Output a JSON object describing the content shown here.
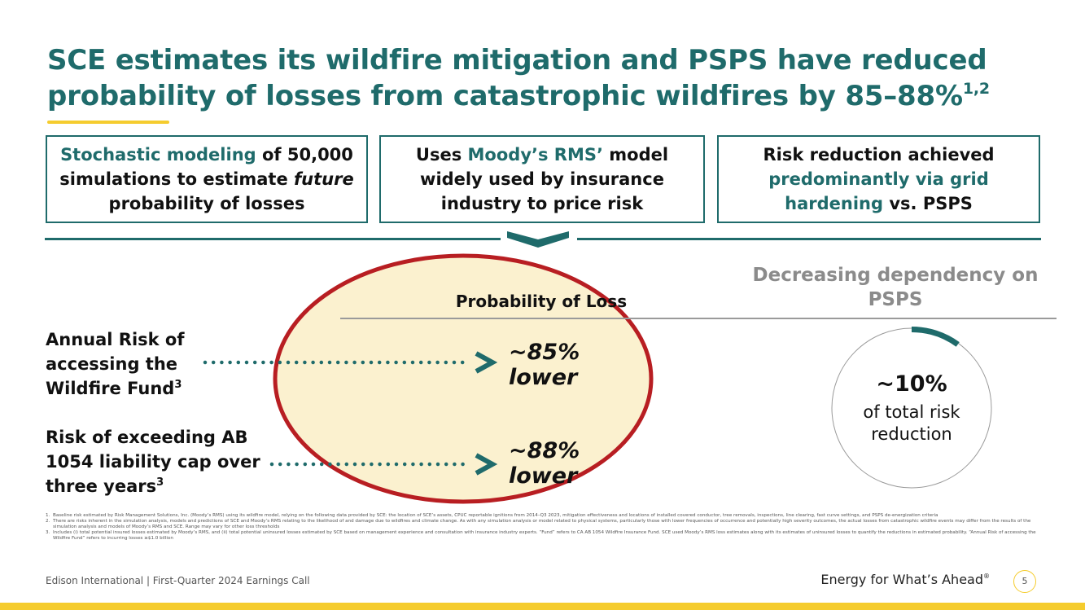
{
  "title": {
    "text": "SCE estimates its wildfire mitigation and PSPS have reduced probability of losses from catastrophic wildfires by 85–88%",
    "superscript": "1,2"
  },
  "boxes": {
    "box1": {
      "highlight": "Stochastic modeling",
      "text_a": " of 50,000 simulations to estimate ",
      "italic": "future",
      "text_b": " probability of losses"
    },
    "box2": {
      "text_a": "Uses ",
      "highlight": "Moody’s RMS’",
      "text_b": " model widely used by insurance industry to price risk"
    },
    "box3": {
      "text_a": "Risk reduction achieved ",
      "highlight": "predominantly via grid hardening",
      "text_b": " vs. PSPS"
    }
  },
  "probability_label": "Probability of Loss",
  "dependency_heading": "Decreasing dependency on PSPS",
  "rows": [
    {
      "label": "Annual Risk of accessing the Wildfire Fund",
      "superscript": "3",
      "value": "~85%",
      "value_suffix": "lower"
    },
    {
      "label": "Risk of exceeding AB 1054 liability cap over three years",
      "superscript": "3",
      "value": "~88%",
      "value_suffix": "lower"
    }
  ],
  "donut": {
    "value": "~10%",
    "fraction": 0.1,
    "caption": "of total risk reduction"
  },
  "footnotes": [
    {
      "num": "1.",
      "text": "Baseline risk estimated by Risk Management Solutions, Inc. (Moody’s RMS) using its wildfire model, relying on the following data provided by SCE: the location of SCE’s assets, CPUC reportable ignitions from 2014–Q3 2023, mitigation effectiveness and locations of installed covered conductor, tree removals, inspections, line clearing, fast curve settings, and PSPS de-energization criteria"
    },
    {
      "num": "2.",
      "text": "There are risks inherent in the simulation analysis, models and predictions of SCE and Moody’s RMS relating to the likelihood of and damage due to wildfires and climate change. As with any simulation analysis or model related to physical systems, particularly those with lower frequencies of occurrence and potentially high severity outcomes, the actual losses from catastrophic wildfire events may differ from the results of the simulation analysis and models of Moody’s RMS and SCE. Range may vary for other loss thresholds"
    },
    {
      "num": "3.",
      "text": "Includes (i) total potential insured losses estimated by Moody’s RMS, and (ii) total potential uninsured losses estimated by SCE based on management experience and consultation with insurance industry experts. “Fund” refers to CA AB 1054 Wildfire Insurance Fund. SCE used Moody’s RMS loss estimates along with its estimates of uninsured losses to quantify the reductions in estimated probability. “Annual Risk of accessing the Wildfire Fund” refers to incurring losses ≥$1.0 billion"
    }
  ],
  "footer": {
    "left": "Edison International | First-Quarter 2024 Earnings Call",
    "tagline": "Energy for What’s Ahead",
    "tagline_mark": "®",
    "page": "5"
  },
  "colors": {
    "teal": "#1f6b6b",
    "gold": "#f5cc2e",
    "oval_fill": "#fbf1cf",
    "oval_stroke": "#b81e22",
    "grey_heading": "#8b8b8b"
  }
}
